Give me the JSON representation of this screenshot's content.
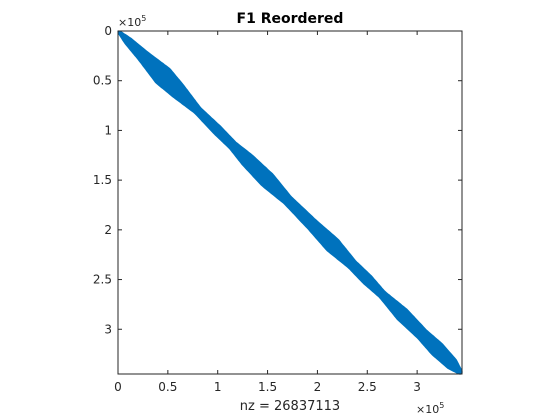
{
  "chart_data": {
    "type": "scatter",
    "title": "F1 Reordered",
    "xlabel": "nz = 26837113",
    "ylabel": "",
    "xlim": [
      0,
      345000
    ],
    "ylim": [
      0,
      345000
    ],
    "y_reversed": true,
    "axis_multiplier": "×10",
    "axis_exponent": "5",
    "x_ticks": [
      0,
      50000,
      100000,
      150000,
      200000,
      250000,
      300000
    ],
    "x_tick_labels": [
      "0",
      "0.5",
      "1",
      "1.5",
      "2",
      "2.5",
      "3"
    ],
    "y_ticks": [
      0,
      50000,
      100000,
      150000,
      200000,
      250000,
      300000
    ],
    "y_tick_labels": [
      "0",
      "0.5",
      "1",
      "1.5",
      "2",
      "2.5",
      "3"
    ],
    "grid": false,
    "marker_color": "#0072BD",
    "series": [
      {
        "kind": "band-along-diagonal",
        "center_offset": 0,
        "half_width_profile": {
          "pos": [
            0,
            10000,
            25000,
            45000,
            60000,
            80000,
            100000,
            115000,
            130000,
            150000,
            170000,
            195000,
            215000,
            235000,
            250000,
            265000,
            285000,
            305000,
            320000,
            335000,
            345000
          ],
          "half_width": [
            1000,
            4000,
            6000,
            10000,
            8000,
            4000,
            5000,
            4500,
            7000,
            8000,
            5000,
            6000,
            8000,
            5000,
            5500,
            4000,
            7000,
            6000,
            7500,
            6000,
            1500
          ]
        }
      }
    ]
  }
}
